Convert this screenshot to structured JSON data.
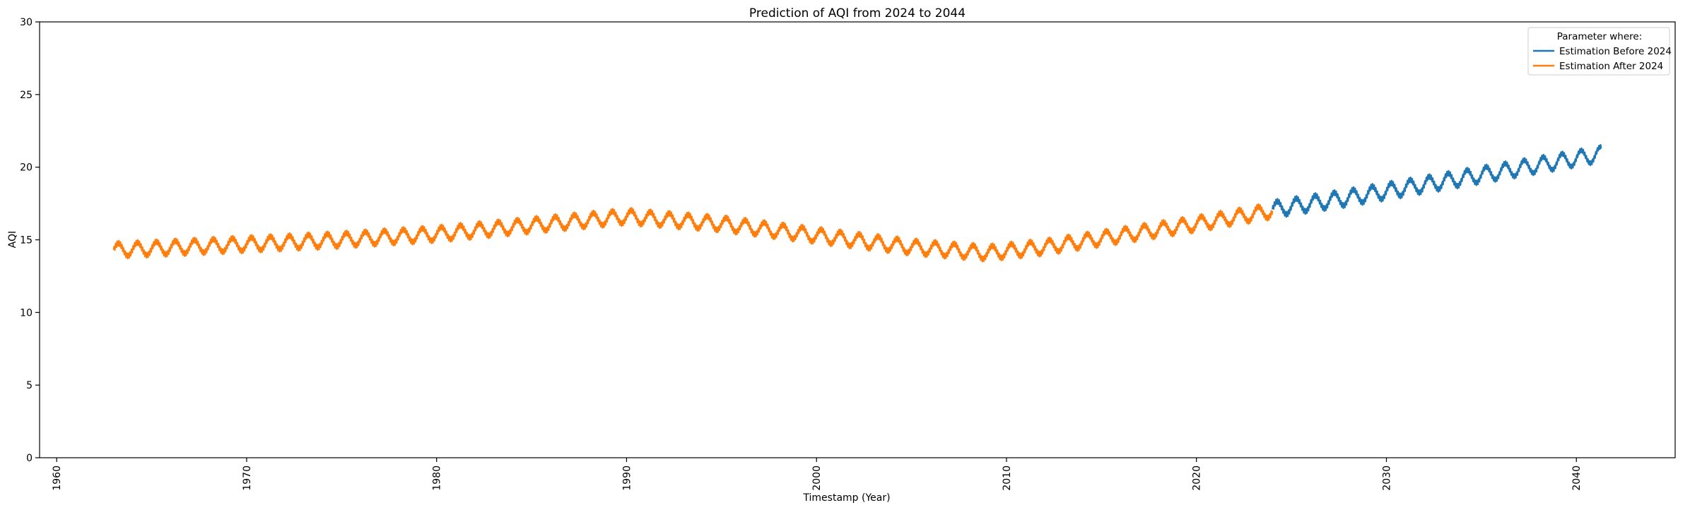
{
  "chart_data": {
    "type": "line",
    "title": "Prediction of AQI from 2024 to 2044",
    "xlabel": "Timestamp (Year)",
    "ylabel": "AQI",
    "xlim": [
      1959.1,
      2045.2
    ],
    "ylim": [
      0,
      30
    ],
    "x_ticks": [
      1960,
      1970,
      1980,
      1990,
      2000,
      2010,
      2020,
      2030,
      2040
    ],
    "y_ticks": [
      0,
      5,
      10,
      15,
      20,
      25,
      30
    ],
    "grid": false,
    "legend": {
      "placement": "top-right",
      "title": "Parameter where:",
      "entries": [
        "Estimation Before 2024",
        "Estimation After 2024"
      ]
    },
    "series": [
      {
        "name": "Estimation After 2024",
        "color": "#ff7f0e",
        "seasonal_amplitude": 0.45,
        "cycles_per_year": 1,
        "x": [
          1963.0,
          1965,
          1970,
          1975,
          1980,
          1985,
          1990,
          1995,
          2000,
          2005,
          2009,
          2012,
          2015,
          2020,
          2024.0
        ],
        "y": [
          14.3,
          14.4,
          14.7,
          15.0,
          15.4,
          16.0,
          16.6,
          16.1,
          15.3,
          14.5,
          14.1,
          14.5,
          15.1,
          16.1,
          17.0
        ]
      },
      {
        "name": "Estimation Before 2024",
        "color": "#1f77b4",
        "seasonal_amplitude": 0.5,
        "cycles_per_year": 1,
        "x": [
          2024.0,
          2028,
          2032,
          2036,
          2040,
          2041.3
        ],
        "y": [
          17.1,
          17.9,
          18.8,
          19.7,
          20.6,
          20.9
        ]
      }
    ]
  }
}
